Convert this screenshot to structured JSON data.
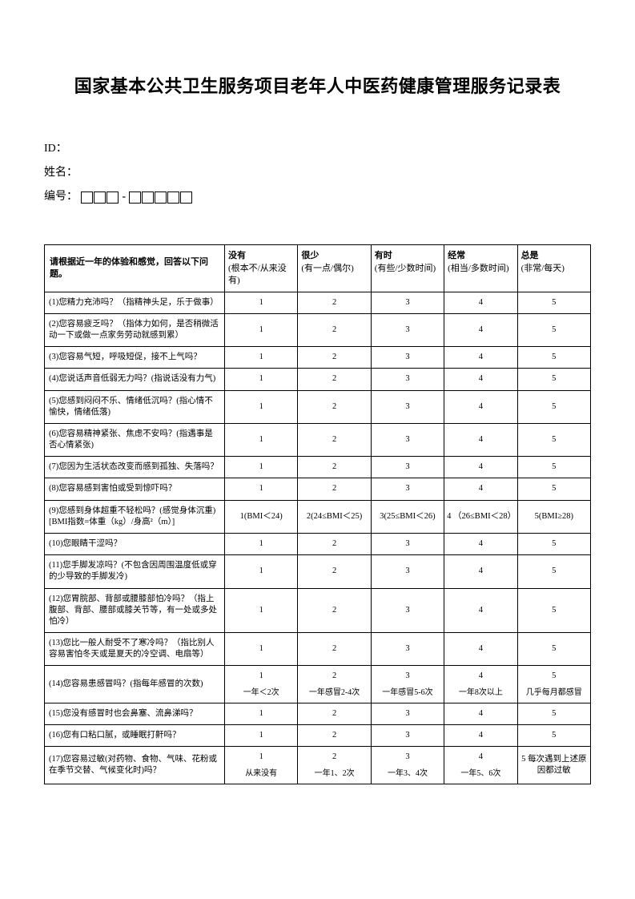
{
  "title": "国家基本公共卫生服务项目老年人中医药健康管理服务记录表",
  "meta": {
    "id_label": "ID：",
    "name_label": "姓名：",
    "number_label": "编号："
  },
  "table": {
    "header_question": "请根据近一年的体验和感觉，回答以下问题。",
    "columns": [
      {
        "main": "没有",
        "sub": "(根本不/从来没有)"
      },
      {
        "main": "很少",
        "sub": "(有一点/偶尔)"
      },
      {
        "main": "有时",
        "sub": "(有些/少数时间)"
      },
      {
        "main": "经常",
        "sub": "(相当/多数时间)"
      },
      {
        "main": "总是",
        "sub": "(非常/每天)"
      }
    ],
    "rows": [
      {
        "q": "(1)您精力充沛吗？（指精神头足，乐于做事）",
        "opts": [
          {
            "n": "1"
          },
          {
            "n": "2"
          },
          {
            "n": "3"
          },
          {
            "n": "4"
          },
          {
            "n": "5"
          }
        ]
      },
      {
        "q": "(2)您容易疲乏吗？（指体力如何，是否稍微活动一下或做一点家务劳动就感到累）",
        "opts": [
          {
            "n": "1"
          },
          {
            "n": "2"
          },
          {
            "n": "3"
          },
          {
            "n": "4"
          },
          {
            "n": "5"
          }
        ]
      },
      {
        "q": "(3)您容易气短，呼吸短促，接不上气吗？",
        "opts": [
          {
            "n": "1"
          },
          {
            "n": "2"
          },
          {
            "n": "3"
          },
          {
            "n": "4"
          },
          {
            "n": "5"
          }
        ]
      },
      {
        "q": "(4)您说话声音低弱无力吗？(指说话没有力气)",
        "opts": [
          {
            "n": "1"
          },
          {
            "n": "2"
          },
          {
            "n": "3"
          },
          {
            "n": "4"
          },
          {
            "n": "5"
          }
        ]
      },
      {
        "q": "(5)您感到闷闷不乐、情绪低沉吗？(指心情不愉快，情绪低落)",
        "opts": [
          {
            "n": "1"
          },
          {
            "n": "2"
          },
          {
            "n": "3"
          },
          {
            "n": "4"
          },
          {
            "n": "5"
          }
        ]
      },
      {
        "q": "(6)您容易精神紧张、焦虑不安吗？(指遇事是否心情紧张)",
        "opts": [
          {
            "n": "1"
          },
          {
            "n": "2"
          },
          {
            "n": "3"
          },
          {
            "n": "4"
          },
          {
            "n": "5"
          }
        ]
      },
      {
        "q": "(7)您因为生活状态改变而感到孤独、失落吗？",
        "opts": [
          {
            "n": "1"
          },
          {
            "n": "2"
          },
          {
            "n": "3"
          },
          {
            "n": "4"
          },
          {
            "n": "5"
          }
        ]
      },
      {
        "q": "(8)您容易感到害怕或受到惊吓吗？",
        "opts": [
          {
            "n": "1"
          },
          {
            "n": "2"
          },
          {
            "n": "3"
          },
          {
            "n": "4"
          },
          {
            "n": "5"
          }
        ]
      },
      {
        "q": "(9)您感到身体超重不轻松吗？(感觉身体沉重)[BMI指数=体重（kg）/身高²（m）]",
        "opts": [
          {
            "n": "1(BMI＜24)"
          },
          {
            "n": "2(24≤BMI＜25)"
          },
          {
            "n": "3(25≤BMI＜26)"
          },
          {
            "n": "4 （26≤BMI＜28）"
          },
          {
            "n": "5(BMI≥28)"
          }
        ]
      },
      {
        "q": "(10)您眼睛干涩吗？",
        "opts": [
          {
            "n": "1"
          },
          {
            "n": "2"
          },
          {
            "n": "3"
          },
          {
            "n": "4"
          },
          {
            "n": "5"
          }
        ]
      },
      {
        "q": "(11)您手脚发凉吗？(不包含因周围温度低或穿的少导致的手脚发冷)",
        "opts": [
          {
            "n": "1"
          },
          {
            "n": "2"
          },
          {
            "n": "3"
          },
          {
            "n": "4"
          },
          {
            "n": "5"
          }
        ]
      },
      {
        "q": "(12)您胃脘部、背部或腰膝部怕冷吗？（指上腹部、背部、腰部或膝关节等，有一处或多处怕冷）",
        "opts": [
          {
            "n": "1"
          },
          {
            "n": "2"
          },
          {
            "n": "3"
          },
          {
            "n": "4"
          },
          {
            "n": "5"
          }
        ]
      },
      {
        "q": "(13)您比一般人耐受不了寒冷吗？（指比别人容易害怕冬天或是夏天的冷空调、电扇等）",
        "opts": [
          {
            "n": "1"
          },
          {
            "n": "2"
          },
          {
            "n": "3"
          },
          {
            "n": "4"
          },
          {
            "n": "5"
          }
        ]
      },
      {
        "q": "(14)您容易患感冒吗？(指每年感冒的次数)",
        "opts": [
          {
            "n": "1",
            "ex": "一年＜2次"
          },
          {
            "n": "2",
            "ex": "一年感冒2-4次"
          },
          {
            "n": "3",
            "ex": "一年感冒5-6次"
          },
          {
            "n": "4",
            "ex": "一年8次以上"
          },
          {
            "n": "5",
            "ex": "几乎每月都感冒"
          }
        ]
      },
      {
        "q": "(15)您没有感冒时也会鼻塞、流鼻涕吗？",
        "opts": [
          {
            "n": "1"
          },
          {
            "n": "2"
          },
          {
            "n": "3"
          },
          {
            "n": "4"
          },
          {
            "n": "5"
          }
        ]
      },
      {
        "q": "(16)您有口粘口腻，或睡眠打鼾吗？",
        "opts": [
          {
            "n": "1"
          },
          {
            "n": "2"
          },
          {
            "n": "3"
          },
          {
            "n": "4"
          },
          {
            "n": "5"
          }
        ]
      },
      {
        "q": "(17)您容易过敏(对药物、食物、气味、花粉或在季节交替、气候变化时)吗？",
        "opts": [
          {
            "n": "1",
            "ex": "从来没有"
          },
          {
            "n": "2",
            "ex": "一年1、2次"
          },
          {
            "n": "3",
            "ex": "一年3、4次"
          },
          {
            "n": "4",
            "ex": "一年5、6次"
          },
          {
            "n": "5 每次遇到上述原因都过敏"
          }
        ]
      }
    ]
  }
}
